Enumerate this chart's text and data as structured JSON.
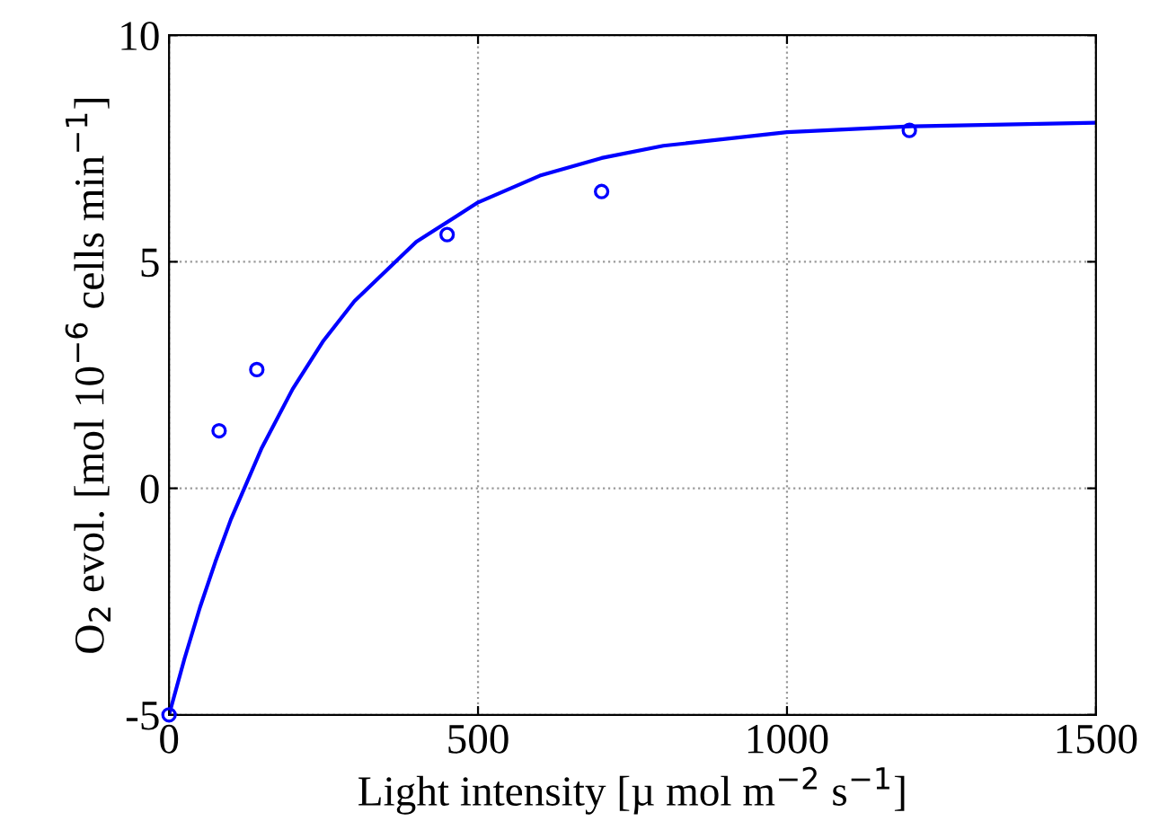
{
  "chart_data": {
    "type": "scatter",
    "xlabel": "Light intensity [µ mol m$^{−2}$ s$^{−1}$]",
    "ylabel": "O$_{2}$ evol. [mol 10$^{−6}$ cells min$^{−1}$]",
    "series": [
      {
        "color": "#0000ff",
        "marker": "circle",
        "x": [
          0,
          81,
          142,
          450,
          700,
          1198
        ],
        "values": [
          -5,
          1.27,
          2.62,
          5.6,
          6.55,
          7.9
        ]
      },
      {
        "type": "line",
        "color": "#0000ff",
        "line_style": "solid",
        "x": [
          0,
          25,
          50,
          75,
          100,
          150,
          200,
          250,
          300,
          400,
          500,
          600,
          700,
          800,
          1000,
          1200,
          1500
        ],
        "values": [
          -5,
          -3.76,
          -2.63,
          -1.62,
          -0.69,
          0.89,
          2.19,
          3.26,
          4.13,
          5.44,
          6.31,
          6.9,
          7.29,
          7.56,
          7.86,
          7.99,
          8.07
        ]
      }
    ],
    "xlim": [
      0,
      1500
    ],
    "xticks": [
      0,
      500,
      1000,
      1500
    ],
    "ylim": [
      -5,
      10
    ],
    "yticks": [
      -5,
      0,
      5,
      10
    ],
    "grid": true
  }
}
